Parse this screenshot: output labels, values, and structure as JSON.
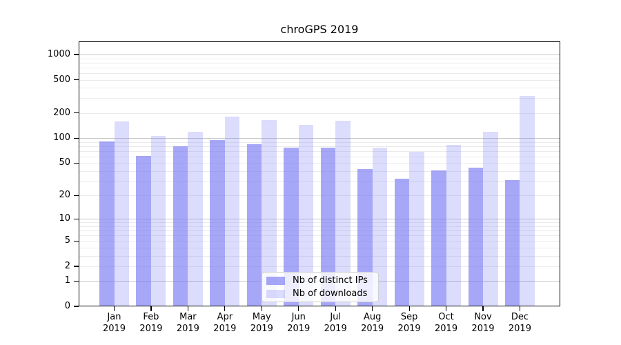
{
  "chart_data": {
    "type": "bar",
    "title": "chroGPS 2019",
    "categories": [
      "Jan",
      "Feb",
      "Mar",
      "Apr",
      "May",
      "Jun",
      "Jul",
      "Aug",
      "Sep",
      "Oct",
      "Nov",
      "Dec"
    ],
    "category_year": "2019",
    "series": [
      {
        "key": "distinct-ips",
        "name": "Nb of distinct IPs",
        "color": "rgba(120,120,245,0.65)",
        "color_hex_on_white": "#a7a7f8",
        "values": [
          92,
          61,
          80,
          94,
          85,
          77,
          77,
          42,
          32,
          41,
          44,
          31
        ]
      },
      {
        "key": "downloads",
        "name": "Nb of downloads",
        "color": "rgba(120,120,245,0.26)",
        "color_hex_on_white": "#dcdcfb",
        "values": [
          160,
          107,
          120,
          180,
          165,
          145,
          162,
          76,
          68,
          83,
          120,
          320
        ]
      }
    ],
    "y_axis": {
      "scale": "log1p",
      "tick_labels": [
        0,
        1,
        2,
        5,
        10,
        20,
        50,
        100,
        200,
        500,
        1000
      ],
      "major_gridlines": [
        1,
        10,
        100,
        1000
      ],
      "minor_gridlines": [
        2,
        3,
        4,
        5,
        6,
        7,
        8,
        9,
        20,
        30,
        40,
        50,
        60,
        70,
        80,
        90,
        200,
        300,
        400,
        500,
        600,
        700,
        800,
        900
      ],
      "ylim": [
        0,
        1430
      ]
    },
    "grid": true,
    "legend": {
      "position": "lower-center-inside"
    },
    "colors": {
      "axis": "#000000",
      "major_grid": "#c6c6c6",
      "minor_grid": "#ebebeb",
      "background": "#ffffff"
    }
  }
}
